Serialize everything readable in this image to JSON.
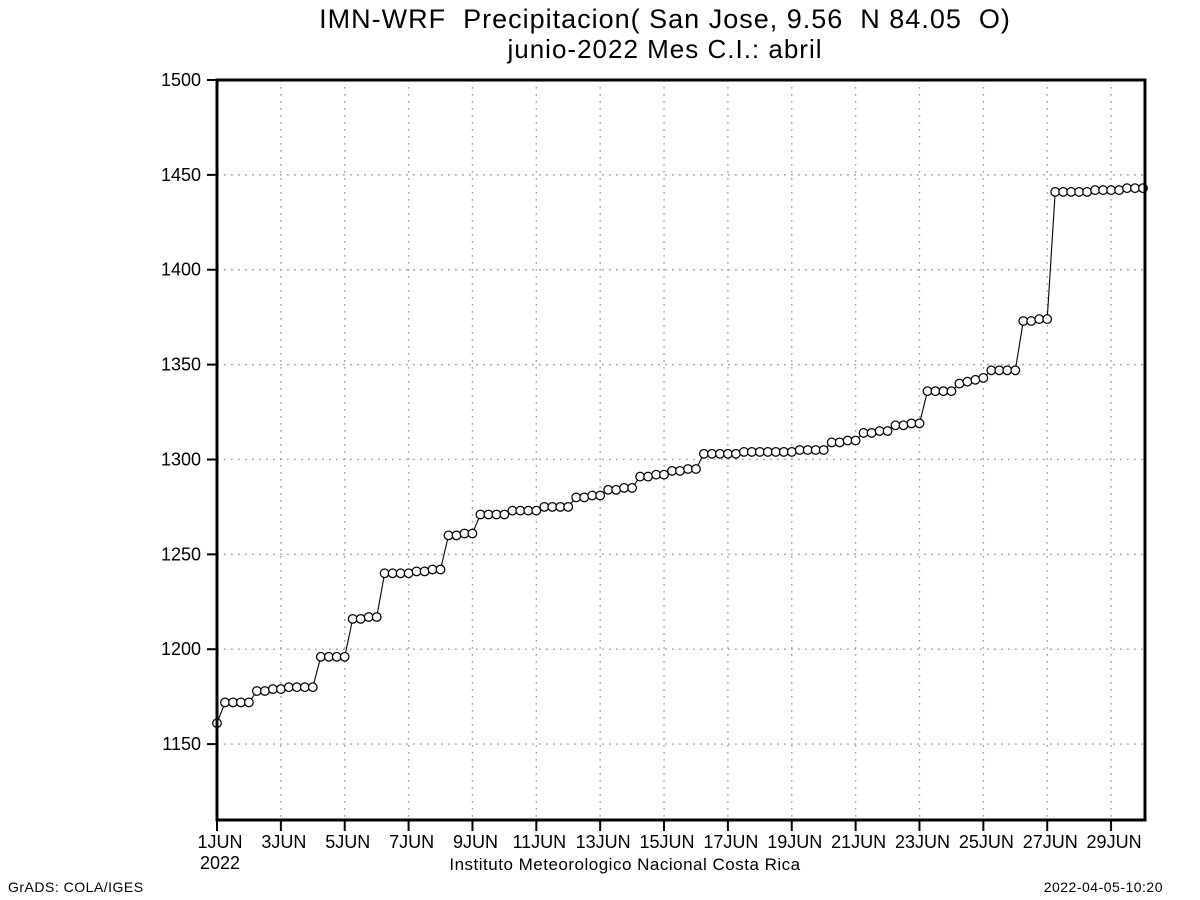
{
  "title": "IMN-WRF  Precipitacion( San Jose, 9.56  N 84.05  O)",
  "subtitle": "junio-2022 Mes C.I.: abril",
  "footer_caption": "Instituto Meteorologico Nacional Costa Rica",
  "credits": {
    "left": "GrADS: COLA/IGES",
    "right": "2022-04-05-10:20"
  },
  "colors": {
    "line": "#000000",
    "marker_stroke": "#000000",
    "marker_fill": "#ffffff",
    "grid": "#a0a0a0",
    "frame": "#000000",
    "background": "#ffffff"
  },
  "chart_data": {
    "type": "line",
    "title": "IMN-WRF  Precipitacion( San Jose, 9.56  N 84.05  O)",
    "subtitle": "junio-2022 Mes C.I.: abril",
    "xlabel": "",
    "ylabel": "",
    "x_unit": "day of June 2022 (6-hourly cumulative precipitation)",
    "marker": "open-circle",
    "grid": "dotted",
    "legend_position": "none",
    "xlim": [
      1,
      30
    ],
    "ylim": [
      1110,
      1500
    ],
    "yticks": [
      1150,
      1200,
      1250,
      1300,
      1350,
      1400,
      1450,
      1500
    ],
    "xticks": [
      {
        "day": 1,
        "label": "1JUN",
        "sublabel": "2022"
      },
      {
        "day": 3,
        "label": "3JUN"
      },
      {
        "day": 5,
        "label": "5JUN"
      },
      {
        "day": 7,
        "label": "7JUN"
      },
      {
        "day": 9,
        "label": "9JUN"
      },
      {
        "day": 11,
        "label": "11JUN"
      },
      {
        "day": 13,
        "label": "13JUN"
      },
      {
        "day": 15,
        "label": "15JUN"
      },
      {
        "day": 17,
        "label": "17JUN"
      },
      {
        "day": 19,
        "label": "19JUN"
      },
      {
        "day": 21,
        "label": "21JUN"
      },
      {
        "day": 23,
        "label": "23JUN"
      },
      {
        "day": 25,
        "label": "25JUN"
      },
      {
        "day": 27,
        "label": "27JUN"
      },
      {
        "day": 29,
        "label": "29JUN"
      }
    ],
    "x_start": 1.0,
    "x_step": 0.25,
    "values": [
      1161,
      1172,
      1172,
      1172,
      1172,
      1178,
      1178,
      1179,
      1179,
      1180,
      1180,
      1180,
      1180,
      1196,
      1196,
      1196,
      1196,
      1216,
      1216,
      1217,
      1217,
      1240,
      1240,
      1240,
      1240,
      1241,
      1241,
      1242,
      1242,
      1260,
      1260,
      1261,
      1261,
      1271,
      1271,
      1271,
      1271,
      1273,
      1273,
      1273,
      1273,
      1275,
      1275,
      1275,
      1275,
      1280,
      1280,
      1281,
      1281,
      1284,
      1284,
      1285,
      1285,
      1291,
      1291,
      1292,
      1292,
      1294,
      1294,
      1295,
      1295,
      1303,
      1303,
      1303,
      1303,
      1303,
      1304,
      1304,
      1304,
      1304,
      1304,
      1304,
      1304,
      1305,
      1305,
      1305,
      1305,
      1309,
      1309,
      1310,
      1310,
      1314,
      1314,
      1315,
      1315,
      1318,
      1318,
      1319,
      1319,
      1336,
      1336,
      1336,
      1336,
      1340,
      1341,
      1342,
      1343,
      1347,
      1347,
      1347,
      1347,
      1373,
      1373,
      1374,
      1374,
      1441,
      1441,
      1441,
      1441,
      1441,
      1442,
      1442,
      1442,
      1442,
      1443,
      1443,
      1443
    ]
  }
}
